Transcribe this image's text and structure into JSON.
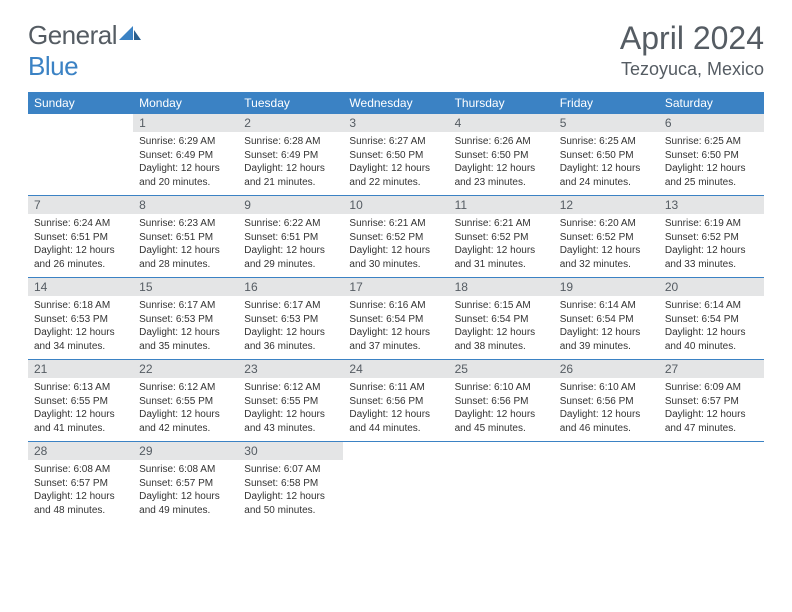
{
  "logo": {
    "word1": "General",
    "word2": "Blue"
  },
  "title": "April 2024",
  "location": "Tezoyuca, Mexico",
  "colors": {
    "header_bg": "#3b82c4",
    "header_text": "#ffffff",
    "daynum_bg": "#e4e5e6",
    "text": "#333333",
    "muted": "#555c63",
    "rule": "#3b82c4"
  },
  "weekdays": [
    "Sunday",
    "Monday",
    "Tuesday",
    "Wednesday",
    "Thursday",
    "Friday",
    "Saturday"
  ],
  "weeks": [
    [
      {
        "n": "",
        "sr": "",
        "ss": "",
        "dl": ""
      },
      {
        "n": "1",
        "sr": "Sunrise: 6:29 AM",
        "ss": "Sunset: 6:49 PM",
        "dl": "Daylight: 12 hours and 20 minutes."
      },
      {
        "n": "2",
        "sr": "Sunrise: 6:28 AM",
        "ss": "Sunset: 6:49 PM",
        "dl": "Daylight: 12 hours and 21 minutes."
      },
      {
        "n": "3",
        "sr": "Sunrise: 6:27 AM",
        "ss": "Sunset: 6:50 PM",
        "dl": "Daylight: 12 hours and 22 minutes."
      },
      {
        "n": "4",
        "sr": "Sunrise: 6:26 AM",
        "ss": "Sunset: 6:50 PM",
        "dl": "Daylight: 12 hours and 23 minutes."
      },
      {
        "n": "5",
        "sr": "Sunrise: 6:25 AM",
        "ss": "Sunset: 6:50 PM",
        "dl": "Daylight: 12 hours and 24 minutes."
      },
      {
        "n": "6",
        "sr": "Sunrise: 6:25 AM",
        "ss": "Sunset: 6:50 PM",
        "dl": "Daylight: 12 hours and 25 minutes."
      }
    ],
    [
      {
        "n": "7",
        "sr": "Sunrise: 6:24 AM",
        "ss": "Sunset: 6:51 PM",
        "dl": "Daylight: 12 hours and 26 minutes."
      },
      {
        "n": "8",
        "sr": "Sunrise: 6:23 AM",
        "ss": "Sunset: 6:51 PM",
        "dl": "Daylight: 12 hours and 28 minutes."
      },
      {
        "n": "9",
        "sr": "Sunrise: 6:22 AM",
        "ss": "Sunset: 6:51 PM",
        "dl": "Daylight: 12 hours and 29 minutes."
      },
      {
        "n": "10",
        "sr": "Sunrise: 6:21 AM",
        "ss": "Sunset: 6:52 PM",
        "dl": "Daylight: 12 hours and 30 minutes."
      },
      {
        "n": "11",
        "sr": "Sunrise: 6:21 AM",
        "ss": "Sunset: 6:52 PM",
        "dl": "Daylight: 12 hours and 31 minutes."
      },
      {
        "n": "12",
        "sr": "Sunrise: 6:20 AM",
        "ss": "Sunset: 6:52 PM",
        "dl": "Daylight: 12 hours and 32 minutes."
      },
      {
        "n": "13",
        "sr": "Sunrise: 6:19 AM",
        "ss": "Sunset: 6:52 PM",
        "dl": "Daylight: 12 hours and 33 minutes."
      }
    ],
    [
      {
        "n": "14",
        "sr": "Sunrise: 6:18 AM",
        "ss": "Sunset: 6:53 PM",
        "dl": "Daylight: 12 hours and 34 minutes."
      },
      {
        "n": "15",
        "sr": "Sunrise: 6:17 AM",
        "ss": "Sunset: 6:53 PM",
        "dl": "Daylight: 12 hours and 35 minutes."
      },
      {
        "n": "16",
        "sr": "Sunrise: 6:17 AM",
        "ss": "Sunset: 6:53 PM",
        "dl": "Daylight: 12 hours and 36 minutes."
      },
      {
        "n": "17",
        "sr": "Sunrise: 6:16 AM",
        "ss": "Sunset: 6:54 PM",
        "dl": "Daylight: 12 hours and 37 minutes."
      },
      {
        "n": "18",
        "sr": "Sunrise: 6:15 AM",
        "ss": "Sunset: 6:54 PM",
        "dl": "Daylight: 12 hours and 38 minutes."
      },
      {
        "n": "19",
        "sr": "Sunrise: 6:14 AM",
        "ss": "Sunset: 6:54 PM",
        "dl": "Daylight: 12 hours and 39 minutes."
      },
      {
        "n": "20",
        "sr": "Sunrise: 6:14 AM",
        "ss": "Sunset: 6:54 PM",
        "dl": "Daylight: 12 hours and 40 minutes."
      }
    ],
    [
      {
        "n": "21",
        "sr": "Sunrise: 6:13 AM",
        "ss": "Sunset: 6:55 PM",
        "dl": "Daylight: 12 hours and 41 minutes."
      },
      {
        "n": "22",
        "sr": "Sunrise: 6:12 AM",
        "ss": "Sunset: 6:55 PM",
        "dl": "Daylight: 12 hours and 42 minutes."
      },
      {
        "n": "23",
        "sr": "Sunrise: 6:12 AM",
        "ss": "Sunset: 6:55 PM",
        "dl": "Daylight: 12 hours and 43 minutes."
      },
      {
        "n": "24",
        "sr": "Sunrise: 6:11 AM",
        "ss": "Sunset: 6:56 PM",
        "dl": "Daylight: 12 hours and 44 minutes."
      },
      {
        "n": "25",
        "sr": "Sunrise: 6:10 AM",
        "ss": "Sunset: 6:56 PM",
        "dl": "Daylight: 12 hours and 45 minutes."
      },
      {
        "n": "26",
        "sr": "Sunrise: 6:10 AM",
        "ss": "Sunset: 6:56 PM",
        "dl": "Daylight: 12 hours and 46 minutes."
      },
      {
        "n": "27",
        "sr": "Sunrise: 6:09 AM",
        "ss": "Sunset: 6:57 PM",
        "dl": "Daylight: 12 hours and 47 minutes."
      }
    ],
    [
      {
        "n": "28",
        "sr": "Sunrise: 6:08 AM",
        "ss": "Sunset: 6:57 PM",
        "dl": "Daylight: 12 hours and 48 minutes."
      },
      {
        "n": "29",
        "sr": "Sunrise: 6:08 AM",
        "ss": "Sunset: 6:57 PM",
        "dl": "Daylight: 12 hours and 49 minutes."
      },
      {
        "n": "30",
        "sr": "Sunrise: 6:07 AM",
        "ss": "Sunset: 6:58 PM",
        "dl": "Daylight: 12 hours and 50 minutes."
      },
      {
        "n": "",
        "sr": "",
        "ss": "",
        "dl": ""
      },
      {
        "n": "",
        "sr": "",
        "ss": "",
        "dl": ""
      },
      {
        "n": "",
        "sr": "",
        "ss": "",
        "dl": ""
      },
      {
        "n": "",
        "sr": "",
        "ss": "",
        "dl": ""
      }
    ]
  ]
}
